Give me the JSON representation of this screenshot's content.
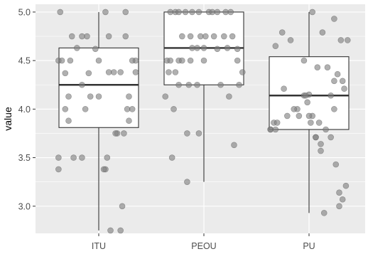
{
  "chart_data": {
    "type": "boxplot",
    "title": "",
    "xlabel": "",
    "ylabel": "value",
    "ylim": [
      2.72,
      5.08
    ],
    "y_ticks": [
      3.0,
      3.5,
      4.0,
      4.5,
      5.0
    ],
    "y_tick_labels": [
      "3.0",
      "3.5",
      "4.0",
      "4.5",
      "5.0"
    ],
    "categories": [
      "ITU",
      "PEOU",
      "PU"
    ],
    "grid": true,
    "legend": "none",
    "colors": {
      "panel_bg": "#ebebeb",
      "grid_major": "#ffffff",
      "box_fill": "#ffffff",
      "box_line": "#333333",
      "point_fill": "#808080",
      "point_stroke": "#555555"
    },
    "boxes": [
      {
        "category": "ITU",
        "lower_whisker": 2.75,
        "q1": 3.81,
        "median": 4.25,
        "q3": 4.63,
        "upper_whisker": 5.0
      },
      {
        "category": "PEOU",
        "lower_whisker": 3.25,
        "q1": 4.25,
        "median": 4.63,
        "q3": 5.0,
        "upper_whisker": 5.0
      },
      {
        "category": "PU",
        "lower_whisker": 2.93,
        "q1": 3.79,
        "median": 4.14,
        "q3": 4.54,
        "upper_whisker": 5.0
      }
    ],
    "points": [
      {
        "category": "ITU",
        "jitter": [
          -0.46,
          -0.32,
          -0.14,
          -0.48,
          -0.44,
          -0.34,
          -0.12,
          -0.4,
          -0.2,
          0.12,
          0.18,
          0.26,
          -0.36,
          -0.4,
          -0.1,
          0.0,
          0.34,
          0.4,
          0.44,
          0.22,
          0.36,
          0.3,
          -0.36,
          -0.2,
          -0.3,
          0.1,
          0.08,
          0.06,
          0.28,
          0.2,
          0.32,
          -0.16,
          0.0,
          -0.26,
          -0.2,
          0.4,
          0.44,
          0.36,
          -0.48,
          -0.48,
          0.12,
          -0.04,
          0.14,
          0.26,
          0.08,
          0.32
        ],
        "values": [
          5.0,
          4.75,
          4.75,
          4.5,
          4.5,
          4.5,
          4.37,
          4.37,
          4.25,
          4.38,
          4.38,
          4.38,
          4.13,
          4.0,
          4.13,
          4.13,
          4.0,
          4.0,
          4.5,
          3.75,
          3.88,
          3.75,
          3.88,
          3.5,
          3.5,
          3.5,
          3.38,
          3.38,
          3.0,
          3.75,
          4.75,
          4.0,
          4.5,
          4.63,
          4.75,
          4.5,
          4.38,
          4.13,
          3.5,
          3.38,
          4.75,
          4.62,
          2.75,
          2.75,
          5.0,
          5.0
        ]
      },
      {
        "category": "PEOU",
        "jitter": [
          -0.4,
          -0.34,
          -0.3,
          -0.22,
          -0.14,
          -0.06,
          0.06,
          0.1,
          0.16,
          0.26,
          0.32,
          -0.26,
          -0.16,
          -0.04,
          0.02,
          0.12,
          0.24,
          0.34,
          -0.44,
          -0.4,
          -0.3,
          -0.26,
          -0.08,
          -0.14,
          0.0,
          0.16,
          0.4,
          0.46,
          0.4,
          0.42,
          -0.46,
          -0.42,
          -0.36,
          -0.18,
          -0.08,
          0.3,
          0.36,
          -0.2,
          -0.06,
          -0.38,
          -0.2,
          0.0,
          0.2,
          0.28,
          -0.34,
          -0.3,
          -0.16
        ],
        "values": [
          5.0,
          5.0,
          5.0,
          5.0,
          5.0,
          5.0,
          5.0,
          5.0,
          5.0,
          5.0,
          5.0,
          4.75,
          4.75,
          4.75,
          4.75,
          4.75,
          4.75,
          4.75,
          4.5,
          4.5,
          4.5,
          4.5,
          4.63,
          4.63,
          4.63,
          4.62,
          4.62,
          4.38,
          4.5,
          4.25,
          4.13,
          4.38,
          4.0,
          4.25,
          4.25,
          4.13,
          3.63,
          3.75,
          3.75,
          3.5,
          3.25,
          4.5,
          4.25,
          4.63,
          4.38,
          4.25,
          4.5
        ]
      },
      {
        "category": "PU",
        "jitter": [
          -0.46,
          -0.4,
          -0.32,
          -0.22,
          -0.06,
          0.0,
          0.1,
          0.16,
          0.3,
          0.38,
          0.46,
          -0.42,
          -0.3,
          -0.14,
          0.04,
          0.12,
          0.2,
          0.26,
          0.34,
          0.4,
          -0.46,
          -0.38,
          -0.26,
          -0.18,
          -0.06,
          0.0,
          0.08,
          0.14,
          0.22,
          0.3,
          -0.12,
          -0.04,
          0.02,
          0.08,
          0.14,
          0.26,
          0.32,
          0.44,
          0.36,
          0.36,
          0.4,
          0.18,
          0.42,
          0.04,
          0.3,
          -0.4,
          -0.02
        ],
        "values": [
          3.79,
          4.65,
          4.79,
          4.71,
          4.5,
          4.15,
          4.43,
          4.79,
          4.29,
          4.71,
          4.71,
          3.86,
          4.21,
          4.0,
          3.93,
          3.86,
          3.79,
          4.14,
          4.36,
          4.29,
          3.79,
          3.86,
          3.93,
          4.0,
          4.14,
          3.93,
          3.71,
          3.57,
          4.43,
          4.0,
          3.93,
          4.14,
          3.86,
          3.71,
          3.64,
          3.71,
          3.43,
          3.21,
          3.0,
          3.14,
          3.07,
          2.93,
          4.21,
          5.0,
          4.93,
          3.79,
          4.07
        ]
      }
    ]
  }
}
